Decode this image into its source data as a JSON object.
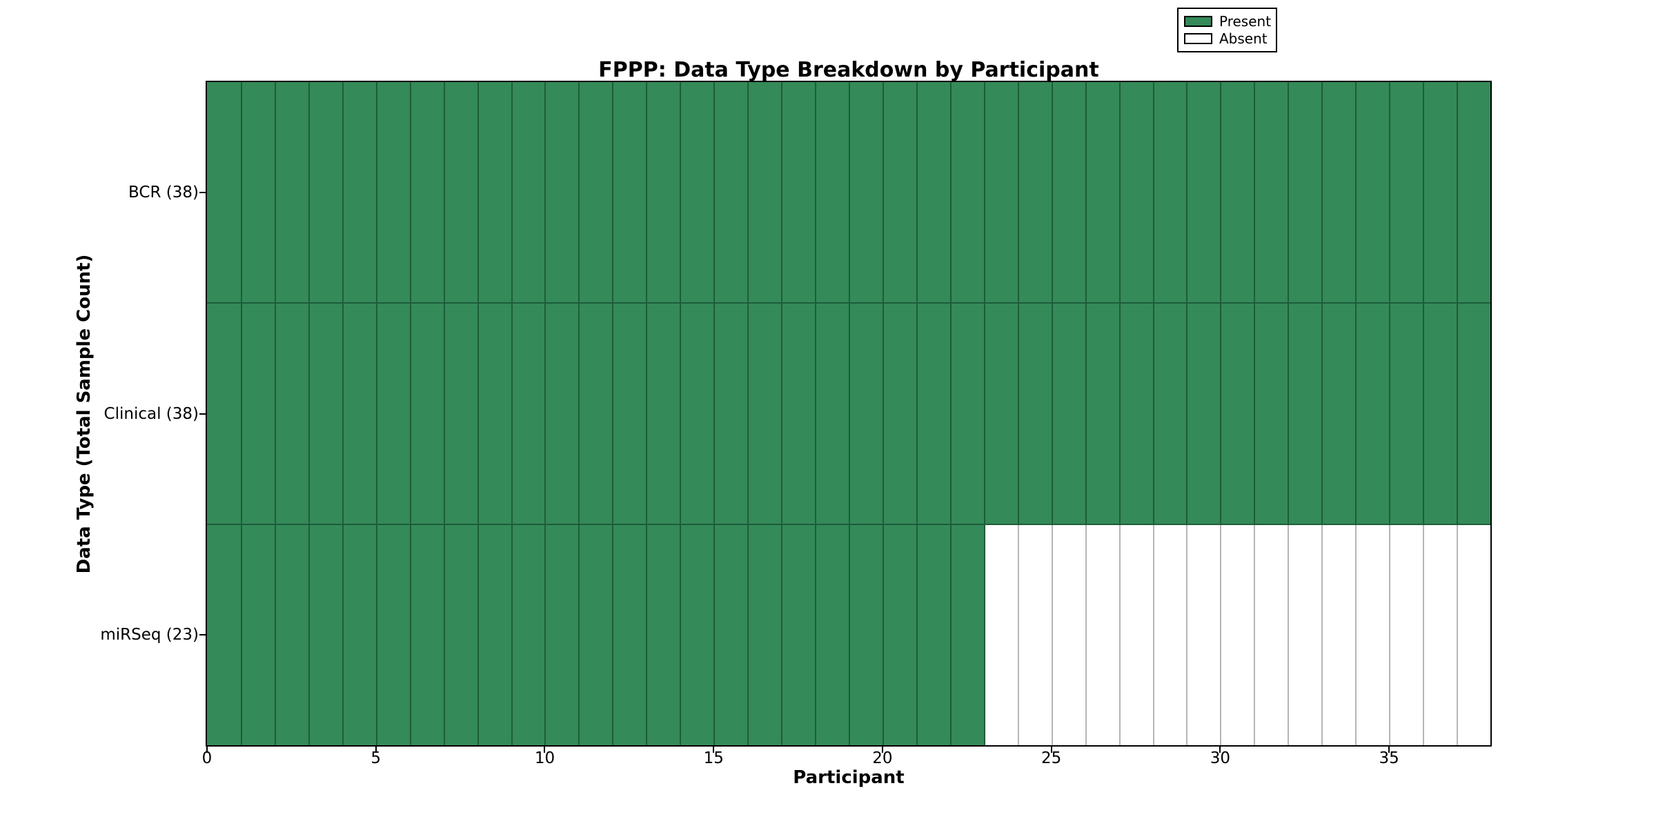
{
  "chart_data": {
    "type": "heatmap",
    "title": "FPPP: Data Type Breakdown by Participant",
    "xlabel": "Participant",
    "ylabel": "Data Type (Total Sample Count)",
    "xlim": [
      0,
      38
    ],
    "x_ticks": [
      0,
      5,
      10,
      15,
      20,
      25,
      30,
      35
    ],
    "participants": 38,
    "rows": [
      {
        "label": "BCR (38)",
        "data_type": "BCR",
        "total_sample_count": 38,
        "present_count": 38
      },
      {
        "label": "Clinical (38)",
        "data_type": "Clinical",
        "total_sample_count": 38,
        "present_count": 38
      },
      {
        "label": "miRSeq (23)",
        "data_type": "miRSeq",
        "total_sample_count": 23,
        "present_count": 23
      }
    ],
    "legend": {
      "position": "upper right",
      "entries": [
        {
          "label": "Present",
          "color": "#348a58"
        },
        {
          "label": "Absent",
          "color": "#ffffff"
        }
      ]
    },
    "colors": {
      "present_fill": "#348a58",
      "present_edge": "#1e5c3a",
      "absent_fill": "#ffffff",
      "absent_edge": "#b5b5b5",
      "axis": "#000000",
      "background": "#ffffff"
    },
    "grid": false
  }
}
